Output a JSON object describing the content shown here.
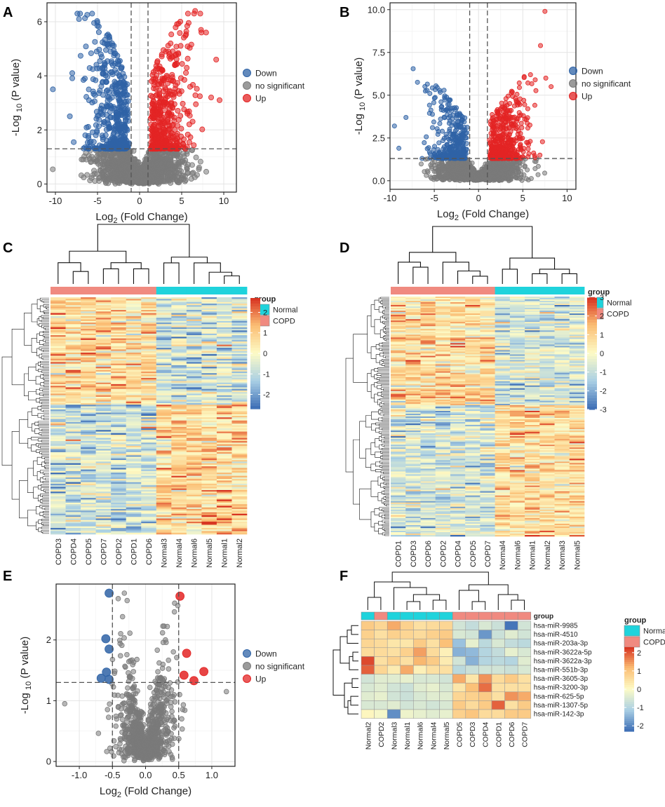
{
  "colors": {
    "down": "#2f63a6",
    "ns": "#7a7a7a",
    "up": "#e32424",
    "normal": "#1fd3dc",
    "copd": "#f08a80",
    "heat_low": "#3b6cb5",
    "heat_mid": "#fdfbc6",
    "heat_high": "#d7301f"
  },
  "chart_data": [
    {
      "panel": "A",
      "type": "scatter",
      "subtype": "volcano",
      "xlabel": "Log2 (Fold Change)",
      "ylabel": "-Log 10 (P value)",
      "xlim": [
        -11,
        11.5
      ],
      "ylim": [
        -0.3,
        6.7
      ],
      "xticks": [
        -10,
        -5,
        0,
        5,
        10
      ],
      "yticks": [
        0,
        2,
        4,
        6
      ],
      "fc_cutoff": 1,
      "p_cutoff": 1.3,
      "legend": {
        "down": "Down",
        "ns": "no significant",
        "up": "Up"
      },
      "extremes_down": [
        [
          -10.3,
          3.5
        ],
        [
          -7.2,
          6.1
        ],
        [
          -5.1,
          4.9
        ],
        [
          -8,
          4.1
        ],
        [
          -6.5,
          3.9
        ],
        [
          -4.4,
          4.3
        ]
      ],
      "extremes_up": [
        [
          6.6,
          6.4
        ],
        [
          9.1,
          4.6
        ],
        [
          7.9,
          5.6
        ],
        [
          8.5,
          3.2
        ],
        [
          7.3,
          5.7
        ],
        [
          9.5,
          3.1
        ]
      ],
      "grid": true
    },
    {
      "panel": "B",
      "type": "scatter",
      "subtype": "volcano",
      "xlabel": "Log2 (Fold Change)",
      "ylabel": "-Log 10 (P value)",
      "xlim": [
        -10,
        11
      ],
      "ylim": [
        -0.5,
        10.4
      ],
      "xticks": [
        -10,
        -5,
        0,
        5,
        10
      ],
      "yticks": [
        0.0,
        2.5,
        5.0,
        7.5,
        10.0
      ],
      "ytick_labels": [
        "0.0",
        "2.5",
        "5.0",
        "7.5",
        "10.0"
      ],
      "fc_cutoff": 1,
      "p_cutoff": 1.3,
      "legend": {
        "down": "Down",
        "ns": "no significant",
        "up": "Up"
      },
      "extremes_down": [
        [
          -9.5,
          3.2
        ],
        [
          -5.5,
          5.1
        ],
        [
          -9,
          1.9
        ],
        [
          -8.2,
          3.7
        ],
        [
          -3.5,
          4.2
        ]
      ],
      "extremes_up": [
        [
          7.5,
          9.9
        ],
        [
          7.0,
          7.9
        ],
        [
          8.2,
          5.5
        ],
        [
          7.6,
          6.0
        ],
        [
          6.4,
          5.9
        ]
      ],
      "grid": true
    },
    {
      "panel": "C",
      "type": "heatmap",
      "legend_title": "group",
      "groups": [
        "Normal",
        "COPD"
      ],
      "columns": [
        "COPD3",
        "COPD4",
        "COPD5",
        "COPD7",
        "COPD2",
        "COPD1",
        "COPD6",
        "Normal3",
        "Normal4",
        "Normal6",
        "Normal5",
        "Normal1",
        "Normal2"
      ],
      "column_groups": [
        "COPD",
        "COPD",
        "COPD",
        "COPD",
        "COPD",
        "COPD",
        "COPD",
        "Normal",
        "Normal",
        "Normal",
        "Normal",
        "Normal",
        "Normal"
      ],
      "n_rows": 150,
      "scale_range": [
        -2.7,
        2.7
      ],
      "scale_ticks": [
        2,
        1,
        0,
        -1,
        -2
      ]
    },
    {
      "panel": "D",
      "type": "heatmap",
      "legend_title": "group",
      "groups": [
        "Normal",
        "COPD"
      ],
      "columns": [
        "COPD1",
        "COPD3",
        "COPD6",
        "COPD2",
        "COPD4",
        "COPD5",
        "COPD7",
        "Normal4",
        "Normal6",
        "Normal1",
        "Normal2",
        "Normal3",
        "Normal5"
      ],
      "column_groups": [
        "COPD",
        "COPD",
        "COPD",
        "COPD",
        "COPD",
        "COPD",
        "COPD",
        "Normal",
        "Normal",
        "Normal",
        "Normal",
        "Normal",
        "Normal"
      ],
      "n_rows": 170,
      "scale_range": [
        -3,
        3
      ],
      "scale_ticks": [
        3,
        2,
        1,
        0,
        -1,
        -2,
        -3
      ]
    },
    {
      "panel": "E",
      "type": "scatter",
      "subtype": "volcano",
      "xlabel": "Log2 (Fold Change)",
      "ylabel": "-Log 10 (P value)",
      "xlim": [
        -1.35,
        1.35
      ],
      "ylim": [
        -0.08,
        2.92
      ],
      "xticks": [
        -1.0,
        -0.5,
        0.0,
        0.5,
        1.0
      ],
      "xtick_labels": [
        "-1.0",
        "-0.5",
        "0.0",
        "0.5",
        "1.0"
      ],
      "yticks": [
        0,
        1,
        2
      ],
      "fc_cutoff": 0.5,
      "p_cutoff": 1.3,
      "legend": {
        "down": "Down",
        "ns": "no significant",
        "up": "Up"
      },
      "down_points": [
        [
          -0.55,
          2.77
        ],
        [
          -0.6,
          2.02
        ],
        [
          -0.55,
          1.85
        ],
        [
          -0.59,
          1.47
        ],
        [
          -0.67,
          1.37
        ],
        [
          -0.55,
          1.35
        ]
      ],
      "up_points": [
        [
          0.52,
          2.72
        ],
        [
          0.62,
          1.78
        ],
        [
          0.88,
          1.48
        ],
        [
          0.58,
          1.42
        ],
        [
          0.73,
          1.33
        ]
      ],
      "ns_extremes": [
        [
          -0.32,
          2.77
        ],
        [
          -1.22,
          0.95
        ],
        [
          1.22,
          1.15
        ],
        [
          0.3,
          2.0
        ]
      ],
      "grid": true
    },
    {
      "panel": "F",
      "type": "heatmap",
      "legend_title": "group",
      "groups": [
        "Normal",
        "COPD"
      ],
      "columns": [
        "Normal2",
        "COPD2",
        "Normal3",
        "Normal1",
        "Normal6",
        "Normal4",
        "Normal5",
        "COPD5",
        "COPD3",
        "COPD4",
        "COPD1",
        "COPD6",
        "COPD7"
      ],
      "column_groups": [
        "Normal",
        "COPD",
        "Normal",
        "Normal",
        "Normal",
        "Normal",
        "Normal",
        "COPD",
        "COPD",
        "COPD",
        "COPD",
        "COPD",
        "COPD"
      ],
      "rows": [
        "hsa-miR-9985",
        "hsa-miR-4510",
        "hsa-miR-203a-3p",
        "hsa-miR-3622a-5p",
        "hsa-miR-3622a-3p",
        "hsa-miR-551b-3p",
        "hsa-miR-3605-3p",
        "hsa-miR-3200-3p",
        "hsa-miR-625-5p",
        "hsa-miR-1307-5p",
        "hsa-miR-142-3p"
      ],
      "values": [
        [
          0.9,
          0.7,
          1.3,
          0.8,
          0.5,
          0.6,
          0.7,
          -0.6,
          -0.8,
          -0.5,
          -0.7,
          -2.2,
          -0.6
        ],
        [
          0.8,
          0.5,
          0.8,
          0.7,
          0.6,
          0.8,
          0.9,
          -0.5,
          -0.6,
          -1.8,
          -0.7,
          -0.4,
          -0.6
        ],
        [
          0.7,
          0.6,
          0.4,
          0.4,
          0.9,
          0.5,
          1.1,
          -1.3,
          -0.3,
          -0.9,
          -0.5,
          -0.8,
          -0.9
        ],
        [
          0.6,
          0.6,
          0.5,
          0.8,
          1.4,
          0.6,
          0.2,
          -1.5,
          -1.4,
          -1.0,
          -0.8,
          -0.3,
          -0.5
        ],
        [
          2.1,
          0.5,
          0.8,
          0.5,
          1.2,
          0.9,
          0.3,
          -0.6,
          -1.5,
          -1.0,
          -0.9,
          -1.0,
          -0.4
        ],
        [
          1.9,
          0.7,
          0.3,
          1.3,
          0.2,
          0.5,
          0.5,
          -0.9,
          -0.7,
          -0.6,
          -0.6,
          -0.7,
          -0.5
        ],
        [
          -0.6,
          -0.4,
          -0.4,
          -0.3,
          -0.5,
          -0.5,
          -0.6,
          1.3,
          0.4,
          1.5,
          0.6,
          0.9,
          0.5
        ],
        [
          -0.5,
          -0.4,
          -0.6,
          -0.7,
          -0.4,
          -0.3,
          -0.5,
          0.4,
          1.1,
          1.8,
          0.5,
          0.5,
          0.5
        ],
        [
          -0.4,
          -0.3,
          -0.6,
          -0.7,
          -0.5,
          -0.4,
          -0.4,
          0.7,
          0.8,
          0.9,
          0.5,
          1.5,
          1.3
        ],
        [
          -0.5,
          -0.5,
          -0.4,
          -0.6,
          -0.5,
          -0.6,
          -0.5,
          0.9,
          0.6,
          0.9,
          1.9,
          0.5,
          0.9
        ],
        [
          0.1,
          -0.1,
          -1.9,
          -0.2,
          -0.3,
          -0.4,
          -0.3,
          0.8,
          1.0,
          0.6,
          0.6,
          0.9,
          0.9
        ]
      ],
      "scale_range": [
        -2.3,
        2.3
      ],
      "scale_ticks": [
        2,
        1,
        0,
        -1,
        -2
      ]
    }
  ]
}
